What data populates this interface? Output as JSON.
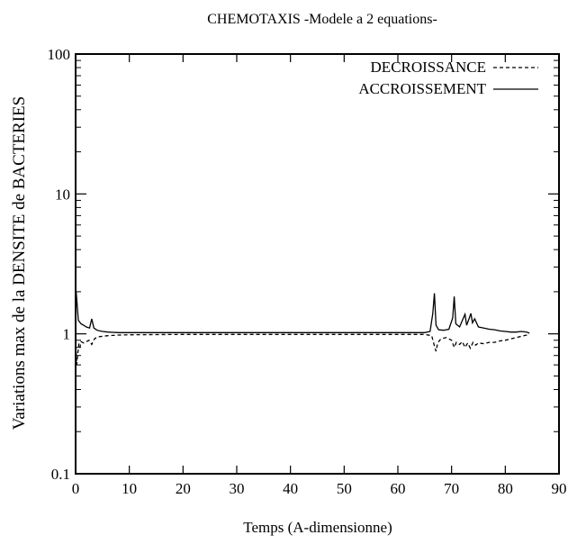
{
  "chart_data": {
    "type": "line",
    "title": "CHEMOTAXIS -Modele a 2 equations-",
    "xlabel": "Temps (A-dimensionne)",
    "ylabel": "Variations max de la DENSITE de BACTERIES",
    "xlim": [
      0,
      90
    ],
    "ylim": [
      0.1,
      100
    ],
    "yscale": "log",
    "grid": false,
    "legend_position": "top-right",
    "xticks": [
      "0",
      "10",
      "20",
      "30",
      "40",
      "50",
      "60",
      "70",
      "80",
      "90"
    ],
    "yticks": [
      "0.1",
      "1",
      "10",
      "100"
    ],
    "series": [
      {
        "name": "DECROISSANCE",
        "style": "dashed",
        "color": "#000000",
        "points": [
          [
            0,
            0.92
          ],
          [
            0.2,
            0.6
          ],
          [
            0.4,
            0.72
          ],
          [
            0.6,
            0.85
          ],
          [
            0.8,
            0.8
          ],
          [
            1.0,
            0.88
          ],
          [
            1.5,
            0.86
          ],
          [
            2.0,
            0.88
          ],
          [
            2.5,
            0.9
          ],
          [
            3.0,
            0.84
          ],
          [
            3.5,
            0.92
          ],
          [
            4.0,
            0.95
          ],
          [
            5,
            0.96
          ],
          [
            6,
            0.97
          ],
          [
            8,
            0.98
          ],
          [
            10,
            0.985
          ],
          [
            20,
            0.99
          ],
          [
            30,
            0.99
          ],
          [
            40,
            0.99
          ],
          [
            50,
            0.99
          ],
          [
            60,
            0.99
          ],
          [
            65,
            0.99
          ],
          [
            66.3,
            0.97
          ],
          [
            66.8,
            0.82
          ],
          [
            67.1,
            0.75
          ],
          [
            67.4,
            0.86
          ],
          [
            68,
            0.92
          ],
          [
            69,
            0.94
          ],
          [
            70,
            0.9
          ],
          [
            70.5,
            0.8
          ],
          [
            70.9,
            0.87
          ],
          [
            71.5,
            0.84
          ],
          [
            72,
            0.88
          ],
          [
            72.5,
            0.8
          ],
          [
            73,
            0.86
          ],
          [
            73.5,
            0.79
          ],
          [
            74,
            0.87
          ],
          [
            74.5,
            0.83
          ],
          [
            75,
            0.86
          ],
          [
            76,
            0.85
          ],
          [
            77,
            0.87
          ],
          [
            78,
            0.87
          ],
          [
            79,
            0.89
          ],
          [
            80,
            0.9
          ],
          [
            81,
            0.92
          ],
          [
            82,
            0.94
          ],
          [
            83,
            0.96
          ],
          [
            84,
            0.98
          ],
          [
            84.5,
            0.99
          ]
        ]
      },
      {
        "name": "ACCROISSEMENT",
        "style": "solid",
        "color": "#000000",
        "points": [
          [
            0,
            1.0
          ],
          [
            0.1,
            2.0
          ],
          [
            0.3,
            1.6
          ],
          [
            0.5,
            1.25
          ],
          [
            1.0,
            1.18
          ],
          [
            1.5,
            1.15
          ],
          [
            2.0,
            1.12
          ],
          [
            2.6,
            1.1
          ],
          [
            3.0,
            1.28
          ],
          [
            3.4,
            1.1
          ],
          [
            4.0,
            1.06
          ],
          [
            5,
            1.04
          ],
          [
            6,
            1.03
          ],
          [
            8,
            1.02
          ],
          [
            10,
            1.02
          ],
          [
            20,
            1.02
          ],
          [
            30,
            1.02
          ],
          [
            40,
            1.02
          ],
          [
            50,
            1.02
          ],
          [
            60,
            1.02
          ],
          [
            65,
            1.02
          ],
          [
            66.0,
            1.04
          ],
          [
            66.5,
            1.4
          ],
          [
            66.8,
            1.95
          ],
          [
            67.1,
            1.15
          ],
          [
            67.6,
            1.07
          ],
          [
            68.5,
            1.06
          ],
          [
            69.5,
            1.08
          ],
          [
            70.2,
            1.3
          ],
          [
            70.5,
            1.85
          ],
          [
            70.8,
            1.18
          ],
          [
            71.5,
            1.12
          ],
          [
            72.2,
            1.3
          ],
          [
            72.5,
            1.38
          ],
          [
            72.8,
            1.15
          ],
          [
            73.3,
            1.3
          ],
          [
            73.6,
            1.4
          ],
          [
            73.9,
            1.2
          ],
          [
            74.3,
            1.28
          ],
          [
            75,
            1.12
          ],
          [
            76,
            1.1
          ],
          [
            77,
            1.08
          ],
          [
            78,
            1.07
          ],
          [
            79,
            1.05
          ],
          [
            80,
            1.04
          ],
          [
            81,
            1.03
          ],
          [
            82,
            1.03
          ],
          [
            83,
            1.04
          ],
          [
            84,
            1.03
          ],
          [
            84.5,
            1.01
          ]
        ]
      }
    ]
  }
}
